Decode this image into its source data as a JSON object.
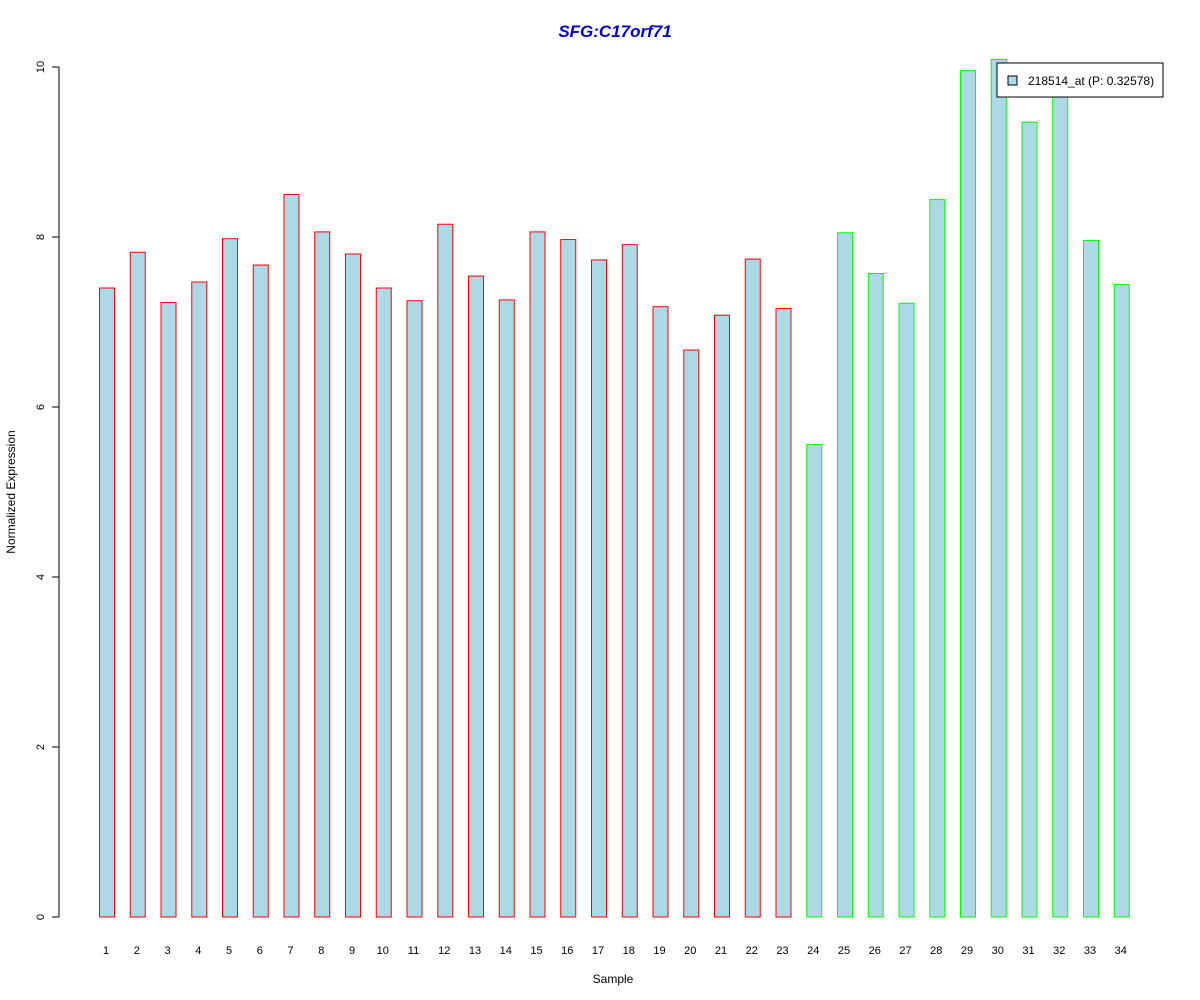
{
  "chart_data": {
    "type": "bar",
    "title": "SFG:C17orf71",
    "xlabel": "Sample",
    "ylabel": "Normalized Expression",
    "ylim": [
      0,
      10
    ],
    "yticks": [
      "0",
      "2",
      "4",
      "6",
      "8",
      "10"
    ],
    "categories": [
      "1",
      "2",
      "3",
      "4",
      "5",
      "6",
      "7",
      "8",
      "9",
      "10",
      "11",
      "12",
      "13",
      "14",
      "15",
      "16",
      "17",
      "18",
      "19",
      "20",
      "21",
      "22",
      "23",
      "24",
      "25",
      "26",
      "27",
      "28",
      "29",
      "30",
      "31",
      "32",
      "33",
      "34"
    ],
    "series": [
      {
        "name": "218514_at (P: 0.32578)",
        "values": [
          7.4,
          7.82,
          7.23,
          7.47,
          7.98,
          7.67,
          8.5,
          8.06,
          7.8,
          7.4,
          7.25,
          8.15,
          7.54,
          7.26,
          8.06,
          7.97,
          7.73,
          7.91,
          7.18,
          6.67,
          7.08,
          7.74,
          7.16,
          5.56,
          8.05,
          7.57,
          7.22,
          8.44,
          9.96,
          10.09,
          9.35,
          9.7,
          7.96,
          7.44
        ]
      }
    ],
    "group_border": [
      "red",
      "red",
      "red",
      "red",
      "red",
      "red",
      "red",
      "red",
      "red",
      "red",
      "red",
      "red",
      "red",
      "red",
      "red",
      "red",
      "red",
      "red",
      "red",
      "red",
      "red",
      "red",
      "red",
      "green",
      "green",
      "green",
      "green",
      "green",
      "green",
      "green",
      "green",
      "green",
      "green",
      "green"
    ],
    "legend": {
      "label": "218514_at (P: 0.32578)",
      "placement": "top-right"
    },
    "grid": false
  },
  "colors": {
    "bar_fill": "#add8e6",
    "border_red": "#ff0000",
    "border_green": "#00ff00",
    "title": "#0000cc",
    "axis": "#000000"
  }
}
